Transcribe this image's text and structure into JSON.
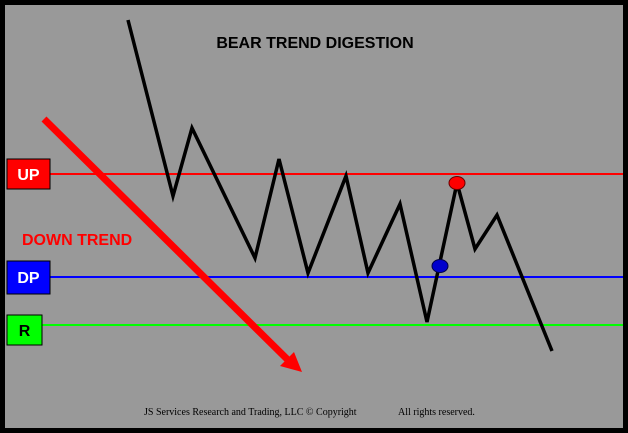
{
  "title": "BEAR TREND DIGESTION",
  "arrow_label": "DOWN TREND",
  "levels": [
    {
      "key": "up",
      "label": "UP",
      "color": "#ff0000",
      "text_color": "#ffffff"
    },
    {
      "key": "dp",
      "label": "DP",
      "color": "#0000ff",
      "text_color": "#ffffff"
    },
    {
      "key": "r",
      "label": "R",
      "color": "#00ff00",
      "text_color": "#000000"
    }
  ],
  "markers": [
    {
      "key": "red-dot",
      "color": "#ff0000"
    },
    {
      "key": "blue-dot",
      "color": "#0000cc"
    }
  ],
  "colors": {
    "background": "#999999",
    "border": "#000000",
    "price_line": "#000000",
    "arrow": "#ff0000"
  },
  "footer": {
    "left": "JS Services Research  and Trading, LLC © Copyright",
    "right": "All rights reserved."
  }
}
